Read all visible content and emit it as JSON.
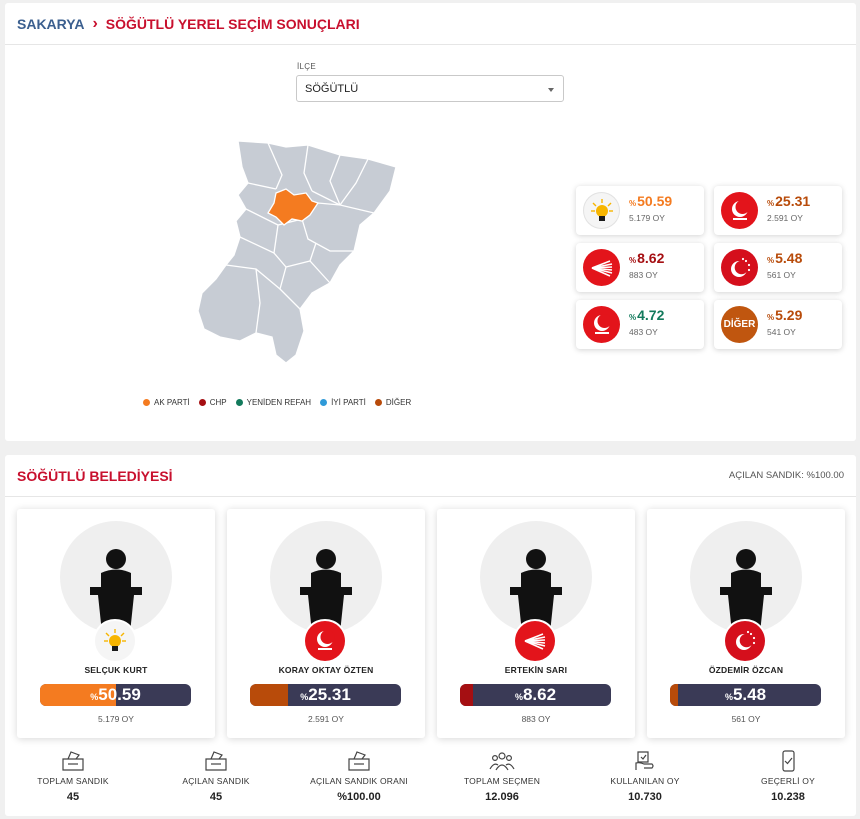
{
  "breadcrumb": {
    "province": "SAKARYA",
    "title": "SÖĞÜTLÜ YEREL SEÇİM SONUÇLARI"
  },
  "district_select": {
    "label": "İLÇE",
    "value": "SÖĞÜTLÜ"
  },
  "parties": [
    {
      "logo": "AKP",
      "pct": "50.59",
      "votes": "5.179 OY",
      "color": "#f47b20"
    },
    {
      "logo": "YRP",
      "pct": "25.31",
      "votes": "2.591 OY",
      "color": "#b84b0a"
    },
    {
      "logo": "CHP",
      "pct": "8.62",
      "votes": "883 OY",
      "color": "#a50f12"
    },
    {
      "logo": "SP",
      "pct": "5.48",
      "votes": "561 OY",
      "color": "#b84b0a"
    },
    {
      "logo": "YRP",
      "pct": "4.72",
      "votes": "483 OY",
      "color": "#137a5c"
    },
    {
      "logo": "DİĞER",
      "pct": "5.29",
      "votes": "541 OY",
      "color": "#b84b0a"
    }
  ],
  "legend": [
    {
      "label": "AK PARTİ",
      "color": "#f47b20"
    },
    {
      "label": "CHP",
      "color": "#a50f12"
    },
    {
      "label": "YENİDEN REFAH",
      "color": "#137a5c"
    },
    {
      "label": "İYİ PARTİ",
      "color": "#2f9ad8"
    },
    {
      "label": "DİĞER",
      "color": "#b84b0a"
    }
  ],
  "municipality": {
    "title": "SÖĞÜTLÜ BELEDİYESİ",
    "opened": "AÇILAN SANDIK: %100.00"
  },
  "candidates": [
    {
      "name": "SELÇUK KURT",
      "logo": "AKP",
      "pct": "50.59",
      "fill": 0.5059,
      "votes": "5.179 OY",
      "color": "#f47b20"
    },
    {
      "name": "KORAY OKTAY ÖZTEN",
      "logo": "YRP",
      "pct": "25.31",
      "fill": 0.2531,
      "votes": "2.591 OY",
      "color": "#b84b0a"
    },
    {
      "name": "ERTEKİN SARI",
      "logo": "CHP",
      "pct": "8.62",
      "fill": 0.0862,
      "votes": "883 OY",
      "color": "#a50f12"
    },
    {
      "name": "ÖZDEMİR ÖZCAN",
      "logo": "SP",
      "pct": "5.48",
      "fill": 0.0548,
      "votes": "561 OY",
      "color": "#b84b0a"
    }
  ],
  "stats": [
    {
      "icon": "ballot-box-icon",
      "label": "TOPLAM SANDIK",
      "value": "45"
    },
    {
      "icon": "ballot-box-icon",
      "label": "AÇILAN SANDIK",
      "value": "45"
    },
    {
      "icon": "ballot-box-icon",
      "label": "AÇILAN SANDIK ORANI",
      "value": "%100.00"
    },
    {
      "icon": "people-icon",
      "label": "TOPLAM SEÇMEN",
      "value": "12.096"
    },
    {
      "icon": "vote-hand-icon",
      "label": "KULLANILAN OY",
      "value": "10.730"
    },
    {
      "icon": "phone-check-icon",
      "label": "GEÇERLİ OY",
      "value": "10.238"
    }
  ]
}
